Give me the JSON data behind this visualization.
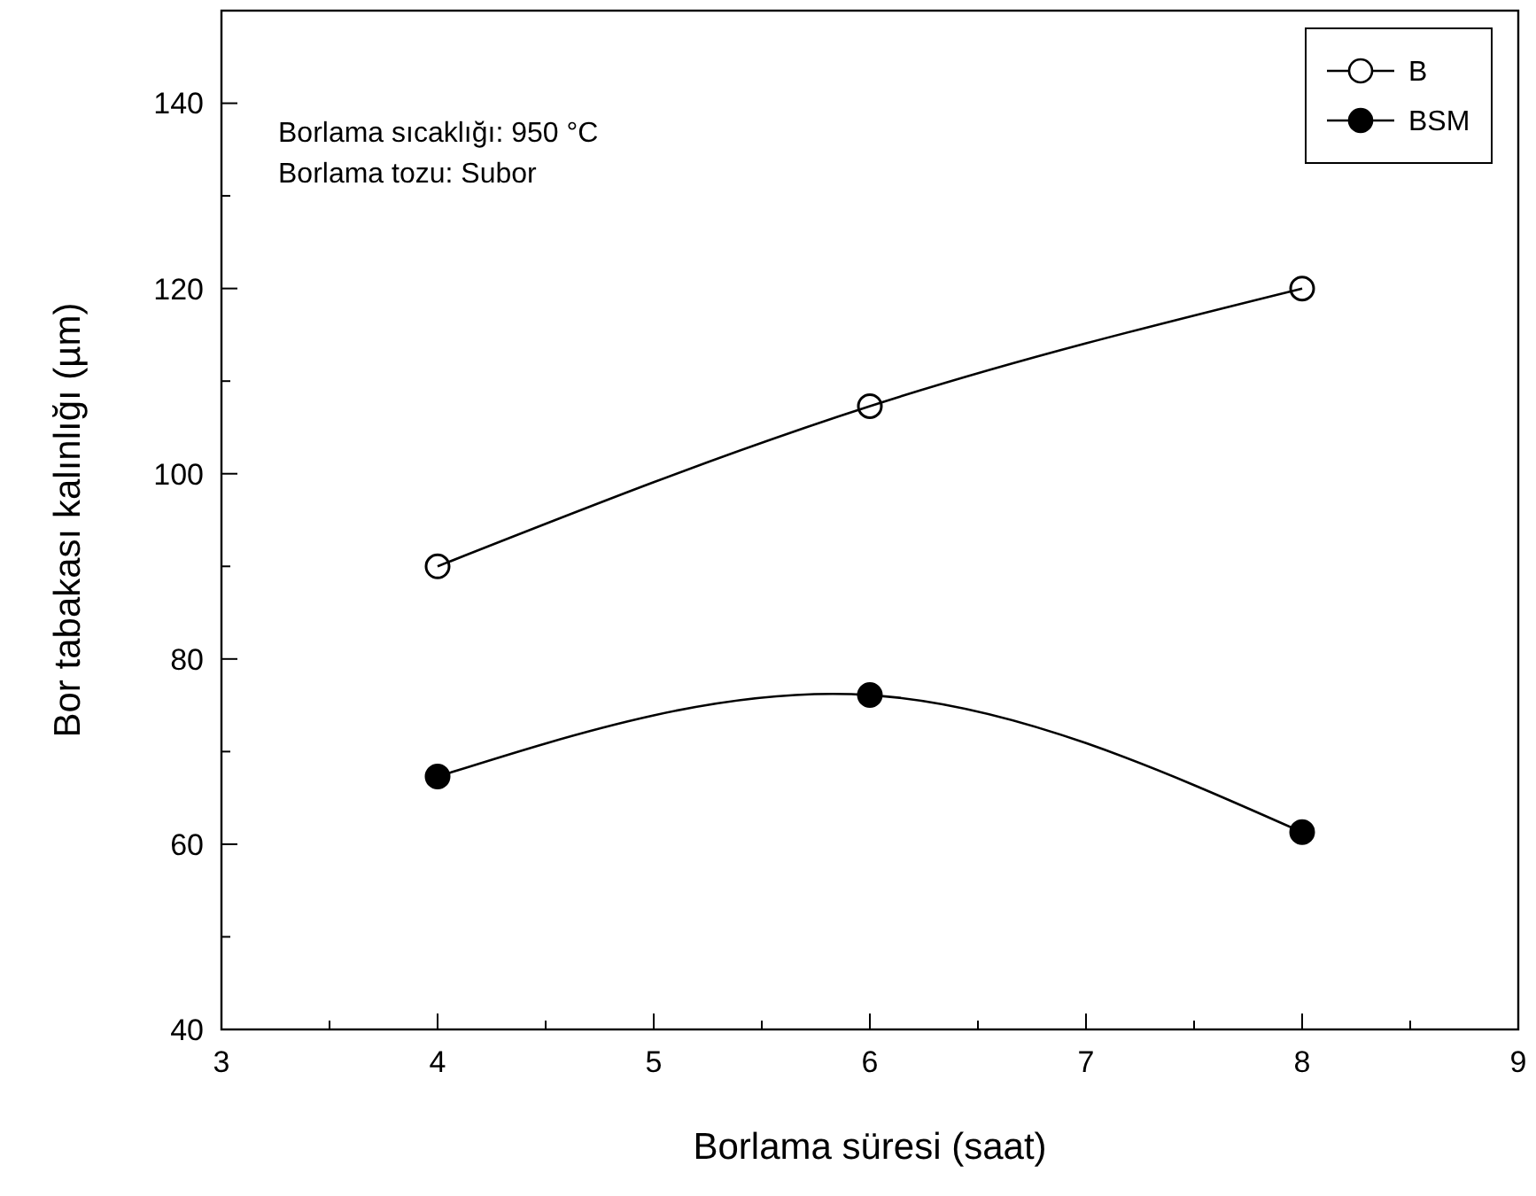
{
  "chart_data": {
    "type": "line",
    "xlabel": "Borlama süresi (saat)",
    "ylabel": "Bor tabakası kalınlığı (µm)",
    "annotations": [
      "Borlama sıcaklığı: 950 °C",
      "Borlama tozu: Subor"
    ],
    "x": [
      4,
      6,
      8
    ],
    "series": [
      {
        "name": "B",
        "color": "#000000",
        "values": [
          90,
          107.3,
          120
        ],
        "marker": "circle"
      },
      {
        "name": "BSM",
        "color": "#000000",
        "values": [
          67.3,
          76.1,
          61.3
        ],
        "marker": "circle"
      }
    ],
    "xlim": [
      3,
      9
    ],
    "xticks": [
      3,
      4,
      5,
      6,
      7,
      8,
      9
    ],
    "ylim": [
      40,
      150
    ],
    "yticks": [
      40,
      60,
      80,
      100,
      120,
      140
    ],
    "grid": false,
    "legend": "top right",
    "line_style": "solid"
  }
}
